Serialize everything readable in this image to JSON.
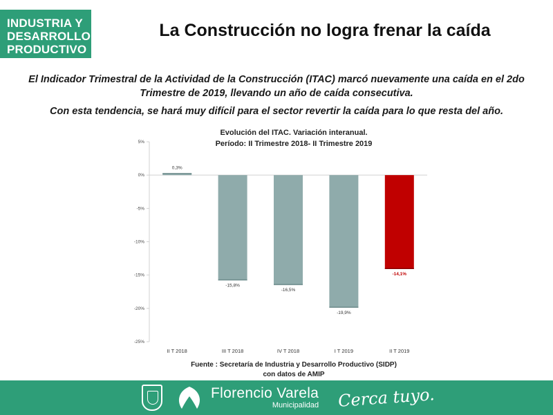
{
  "brand": {
    "line1": "INDUSTRIA Y",
    "line2": "DESARROLLO",
    "line3": "PRODUCTIVO"
  },
  "page_title": "La Construcción no logra frenar la caída",
  "paragraph1": "El Indicador Trimestral de la Actividad de la Construcción (ITAC)  marcó nuevamente una caída en el 2do Trimestre de 2019, llevando un año de caída consecutiva.",
  "paragraph2": "Con esta tendencia, se hará muy difícil para el sector revertir la caída para lo que resta del año.",
  "chart_title_line1": "Evolución del ITAC. Variación interanual.",
  "chart_title_line2": "Período:  II Trimestre 2018- II Trimestre 2019",
  "source_line1": "Fuente : Secretaría de Industria y Desarrollo Productivo (SIDP)",
  "source_line2": "con datos de AMIP",
  "footer": {
    "logo_name": "Florencio Varela",
    "logo_sub": "Municipalidad",
    "slogan": "Cerca tuyo."
  },
  "colors": {
    "brand_green": "#2e9e78",
    "bar_default": "#8fabab",
    "bar_highlight": "#c00000",
    "label_highlight": "#c00000"
  },
  "chart_data": {
    "type": "bar",
    "categories": [
      "II T 2018",
      "III T 2018",
      "IV T 2018",
      "I T 2019",
      "II T 2019"
    ],
    "values": [
      0.3,
      -15.8,
      -16.5,
      -19.9,
      -14.1
    ],
    "data_labels": [
      "0,3%",
      "-15,8%",
      "-16,5%",
      "-19,9%",
      "-14,1%"
    ],
    "highlight_index": 4,
    "ylim": [
      -25,
      5
    ],
    "yticks": [
      5,
      0,
      -5,
      -10,
      -15,
      -20,
      -25
    ],
    "ytick_labels": [
      "5%",
      "0%",
      "-5%",
      "-10%",
      "-15%",
      "-20%",
      "-25%"
    ],
    "grid": false,
    "legend": "none"
  }
}
